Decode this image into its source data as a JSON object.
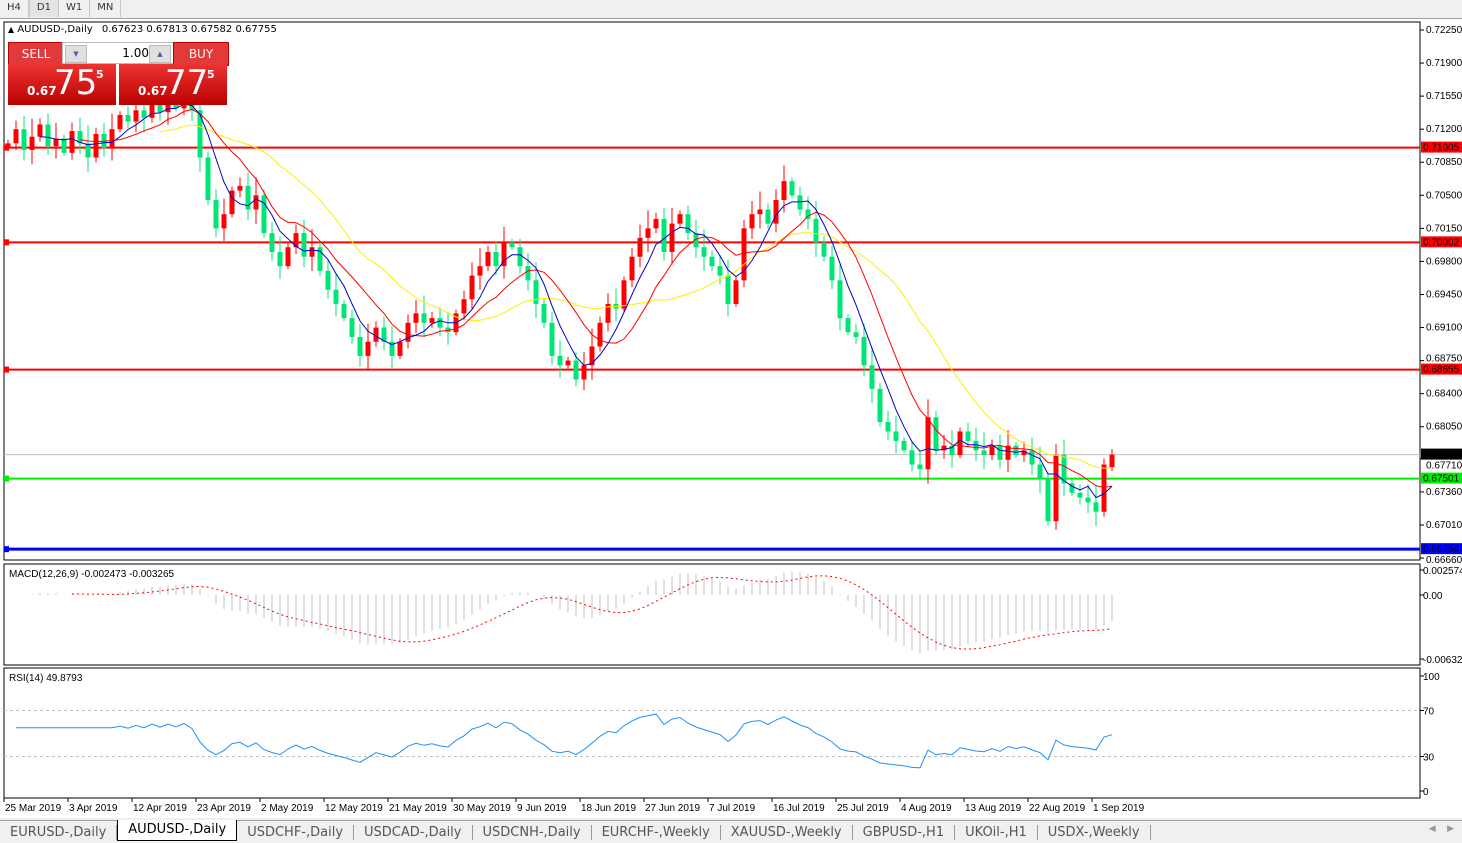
{
  "timeframes": [
    "H4",
    "D1",
    "W1",
    "MN"
  ],
  "chart_header": {
    "symbol": "AUDUSD-,Daily",
    "ohlc": "0.67623 0.67813 0.67582 0.67755"
  },
  "trade_panel": {
    "sell_label": "SELL",
    "buy_label": "BUY",
    "lot": "1.00",
    "sell": {
      "prefix": "0.67",
      "big": "75",
      "sup": "5"
    },
    "buy": {
      "prefix": "0.67",
      "big": "77",
      "sup": "5"
    }
  },
  "price_axis": [
    "0.72250",
    "0.71900",
    "0.71550",
    "0.71200",
    "0.70850",
    "0.70500",
    "0.70150",
    "0.69800",
    "0.69450",
    "0.69100",
    "0.68750",
    "0.68400",
    "0.68050",
    "0.67710",
    "0.67360",
    "0.67010",
    "0.66660"
  ],
  "levels": [
    {
      "price": "0.71005",
      "color": "#ff0000"
    },
    {
      "price": "0.70002",
      "color": "#ff0000"
    },
    {
      "price": "0.68655",
      "color": "#ff0000"
    },
    {
      "price": "0.67501",
      "color": "#00ee00"
    },
    {
      "price": "0.66754",
      "color": "#0000ff"
    }
  ],
  "current_price": "0.67755",
  "macd": {
    "label": "MACD(12,26,9) -0.002473 -0.003265",
    "axis": [
      "0.002574",
      "0.00",
      "-0.006326"
    ]
  },
  "rsi": {
    "label": "RSI(14) 49.8793",
    "axis": [
      "100",
      "70",
      "30",
      "0"
    ]
  },
  "dates": [
    "25 Mar 2019",
    "3 Apr 2019",
    "12 Apr 2019",
    "23 Apr 2019",
    "2 May 2019",
    "12 May 2019",
    "21 May 2019",
    "30 May 2019",
    "9 Jun 2019",
    "18 Jun 2019",
    "27 Jun 2019",
    "7 Jul 2019",
    "16 Jul 2019",
    "25 Jul 2019",
    "4 Aug 2019",
    "13 Aug 2019",
    "22 Aug 2019",
    "1 Sep 2019"
  ],
  "tabs": [
    "EURUSD-,Daily",
    "AUDUSD-,Daily",
    "USDCHF-,Daily",
    "USDCAD-,Daily",
    "USDCNH-,Daily",
    "EURCHF-,Weekly",
    "XAUUSD-,Weekly",
    "GBPUSD-,H1",
    "UKOil-,H1",
    "USDX-,Weekly"
  ],
  "active_tab": 1,
  "colors": {
    "bull": "#ff0000",
    "bear": "#00e676",
    "ma_fast": "#0000cc",
    "ma_mid": "#ff0000",
    "ma_slow": "#ffee00",
    "rsi": "#1e90ff",
    "macd_hist": "#c0c0c0",
    "macd_signal": "#ff0000"
  },
  "chart_data": {
    "type": "candlestick",
    "symbol": "AUDUSD-,Daily",
    "ylim": [
      0.6666,
      0.7225
    ],
    "x_range": [
      "25 Mar 2019",
      "3 Sep 2019"
    ],
    "closes": [
      0.7105,
      0.712,
      0.7098,
      0.7112,
      0.7125,
      0.7102,
      0.711,
      0.7095,
      0.7118,
      0.7105,
      0.709,
      0.7115,
      0.71,
      0.712,
      0.7135,
      0.7128,
      0.714,
      0.7132,
      0.7148,
      0.7138,
      0.715,
      0.7142,
      0.7155,
      0.714,
      0.709,
      0.7045,
      0.7015,
      0.703,
      0.7055,
      0.706,
      0.7035,
      0.705,
      0.701,
      0.699,
      0.6975,
      0.6995,
      0.701,
      0.6985,
      0.6995,
      0.697,
      0.695,
      0.6935,
      0.692,
      0.69,
      0.688,
      0.6895,
      0.691,
      0.6895,
      0.688,
      0.6895,
      0.6915,
      0.6925,
      0.6915,
      0.692,
      0.691,
      0.6905,
      0.6925,
      0.694,
      0.6965,
      0.6975,
      0.699,
      0.6975,
      0.7,
      0.6995,
      0.6975,
      0.696,
      0.6935,
      0.6915,
      0.688,
      0.687,
      0.6875,
      0.6855,
      0.687,
      0.689,
      0.6915,
      0.6935,
      0.693,
      0.696,
      0.6985,
      0.7005,
      0.7015,
      0.7025,
      0.699,
      0.702,
      0.703,
      0.701,
      0.6995,
      0.6985,
      0.6975,
      0.6965,
      0.6935,
      0.696,
      0.7015,
      0.703,
      0.7035,
      0.702,
      0.7045,
      0.7065,
      0.705,
      0.7035,
      0.7025,
      0.7,
      0.6985,
      0.696,
      0.692,
      0.6905,
      0.69,
      0.687,
      0.6845,
      0.681,
      0.68,
      0.679,
      0.678,
      0.6765,
      0.676,
      0.6815,
      0.678,
      0.6785,
      0.6775,
      0.68,
      0.679,
      0.678,
      0.6775,
      0.6785,
      0.677,
      0.6785,
      0.6775,
      0.678,
      0.6765,
      0.675,
      0.6705,
      0.6775,
      0.6745,
      0.6735,
      0.673,
      0.6725,
      0.6715,
      0.6765,
      0.67755
    ],
    "last_bar": {
      "open": 0.67623,
      "high": 0.67813,
      "low": 0.67582,
      "close": 0.67755
    },
    "horizontal_levels": [
      0.71005,
      0.70002,
      0.68655,
      0.67501,
      0.66754
    ],
    "indicators": [
      "MACD(12,26,9)",
      "RSI(14)"
    ],
    "macd_ylim": [
      -0.006326,
      0.002574
    ],
    "rsi_ylim": [
      0,
      100
    ],
    "rsi_levels": [
      30,
      70
    ]
  }
}
